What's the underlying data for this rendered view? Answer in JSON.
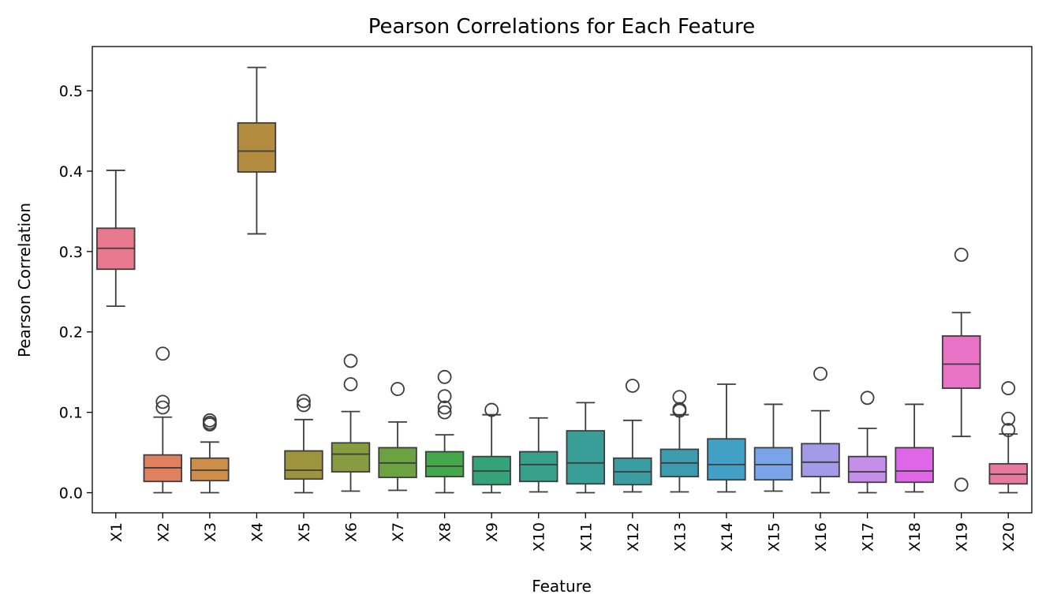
{
  "chart_data": {
    "type": "box",
    "title": "Pearson Correlations for Each Feature",
    "xlabel": "Feature",
    "ylabel": "Pearson Correlation",
    "ylim": [
      -0.025,
      0.555
    ],
    "yticks": [
      0.0,
      0.1,
      0.2,
      0.3,
      0.4,
      0.5
    ],
    "ytick_labels": [
      "0.0",
      "0.1",
      "0.2",
      "0.3",
      "0.4",
      "0.5"
    ],
    "grid": false,
    "categories": [
      "X1",
      "X2",
      "X3",
      "X4",
      "X5",
      "X6",
      "X7",
      "X8",
      "X9",
      "X10",
      "X11",
      "X12",
      "X13",
      "X14",
      "X15",
      "X16",
      "X17",
      "X18",
      "X19",
      "X20"
    ],
    "series": [
      {
        "category": "X1",
        "color": "#e8788d",
        "whisker_low": 0.232,
        "q1": 0.278,
        "median": 0.304,
        "q3": 0.329,
        "whisker_high": 0.401,
        "outliers": []
      },
      {
        "category": "X2",
        "color": "#e1805f",
        "whisker_low": 0.0,
        "q1": 0.014,
        "median": 0.031,
        "q3": 0.047,
        "whisker_high": 0.094,
        "outliers": [
          0.106,
          0.113,
          0.173
        ]
      },
      {
        "category": "X3",
        "color": "#cf8d4a",
        "whisker_low": 0.0,
        "q1": 0.015,
        "median": 0.028,
        "q3": 0.043,
        "whisker_high": 0.063,
        "outliers": [
          0.085,
          0.087,
          0.09
        ]
      },
      {
        "category": "X4",
        "color": "#b38c40",
        "whisker_low": 0.322,
        "q1": 0.399,
        "median": 0.425,
        "q3": 0.46,
        "whisker_high": 0.529,
        "outliers": []
      },
      {
        "category": "X5",
        "color": "#9e943d",
        "whisker_low": 0.0,
        "q1": 0.017,
        "median": 0.028,
        "q3": 0.052,
        "whisker_high": 0.091,
        "outliers": [
          0.109,
          0.114
        ]
      },
      {
        "category": "X6",
        "color": "#879c40",
        "whisker_low": 0.002,
        "q1": 0.026,
        "median": 0.048,
        "q3": 0.062,
        "whisker_high": 0.101,
        "outliers": [
          0.135,
          0.164
        ]
      },
      {
        "category": "X7",
        "color": "#6aa340",
        "whisker_low": 0.003,
        "q1": 0.019,
        "median": 0.037,
        "q3": 0.056,
        "whisker_high": 0.088,
        "outliers": [
          0.129
        ]
      },
      {
        "category": "X8",
        "color": "#44a74a",
        "whisker_low": 0.0,
        "q1": 0.02,
        "median": 0.033,
        "q3": 0.051,
        "whisker_high": 0.072,
        "outliers": [
          0.1,
          0.106,
          0.12,
          0.144
        ]
      },
      {
        "category": "X9",
        "color": "#34a37a",
        "whisker_low": 0.0,
        "q1": 0.01,
        "median": 0.027,
        "q3": 0.045,
        "whisker_high": 0.097,
        "outliers": [
          0.103
        ]
      },
      {
        "category": "X10",
        "color": "#36a08a",
        "whisker_low": 0.001,
        "q1": 0.014,
        "median": 0.035,
        "q3": 0.051,
        "whisker_high": 0.093,
        "outliers": []
      },
      {
        "category": "X11",
        "color": "#389e97",
        "whisker_low": 0.0,
        "q1": 0.011,
        "median": 0.037,
        "q3": 0.077,
        "whisker_high": 0.112,
        "outliers": []
      },
      {
        "category": "X12",
        "color": "#3a9da2",
        "whisker_low": 0.001,
        "q1": 0.01,
        "median": 0.026,
        "q3": 0.043,
        "whisker_high": 0.09,
        "outliers": [
          0.133
        ]
      },
      {
        "category": "X13",
        "color": "#3c9cae",
        "whisker_low": 0.001,
        "q1": 0.02,
        "median": 0.037,
        "q3": 0.054,
        "whisker_high": 0.097,
        "outliers": [
          0.102,
          0.104,
          0.119
        ]
      },
      {
        "category": "X14",
        "color": "#40a0c6",
        "whisker_low": 0.001,
        "q1": 0.016,
        "median": 0.035,
        "q3": 0.067,
        "whisker_high": 0.135,
        "outliers": []
      },
      {
        "category": "X15",
        "color": "#7aa4e8",
        "whisker_low": 0.002,
        "q1": 0.016,
        "median": 0.035,
        "q3": 0.056,
        "whisker_high": 0.11,
        "outliers": []
      },
      {
        "category": "X16",
        "color": "#a59ae8",
        "whisker_low": 0.0,
        "q1": 0.02,
        "median": 0.038,
        "q3": 0.061,
        "whisker_high": 0.102,
        "outliers": [
          0.148
        ]
      },
      {
        "category": "X17",
        "color": "#c58ee8",
        "whisker_low": 0.0,
        "q1": 0.013,
        "median": 0.026,
        "q3": 0.045,
        "whisker_high": 0.08,
        "outliers": [
          0.118
        ]
      },
      {
        "category": "X18",
        "color": "#e066e8",
        "whisker_low": 0.001,
        "q1": 0.013,
        "median": 0.027,
        "q3": 0.056,
        "whisker_high": 0.11,
        "outliers": []
      },
      {
        "category": "X19",
        "color": "#e873c6",
        "whisker_low": 0.07,
        "q1": 0.13,
        "median": 0.16,
        "q3": 0.195,
        "whisker_high": 0.224,
        "outliers": [
          0.01,
          0.296
        ]
      },
      {
        "category": "X20",
        "color": "#e8799e",
        "whisker_low": 0.0,
        "q1": 0.011,
        "median": 0.023,
        "q3": 0.036,
        "whisker_high": 0.073,
        "outliers": [
          0.078,
          0.092,
          0.13
        ]
      }
    ]
  }
}
